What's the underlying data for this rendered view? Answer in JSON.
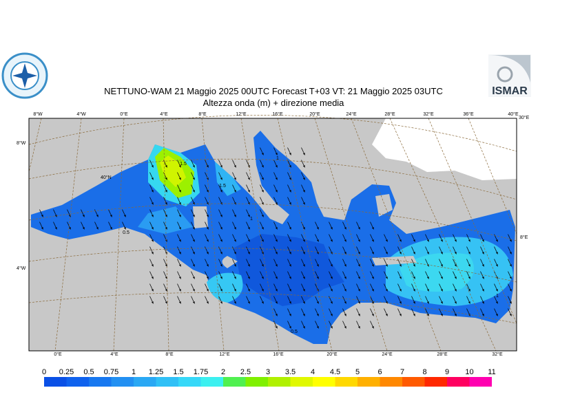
{
  "header": {
    "title": "NETTUNO-WAM  21   Maggio  2025 00UTC Forecast T+03 VT: 21   Maggio  2025 03UTC",
    "subtitle": "Altezza onda (m) + direzione media",
    "logo_right": "ISMAR"
  },
  "map": {
    "top_lon_labels": [
      "8°W",
      "4°W",
      "0°E",
      "4°E",
      "8°E",
      "12°E",
      "16°E",
      "20°E",
      "24°E",
      "28°E",
      "32°E",
      "36°E",
      "40°E"
    ],
    "bottom_lon_labels": [
      "0°E",
      "4°E",
      "8°E",
      "12°E",
      "16°E",
      "20°E",
      "24°E",
      "28°E",
      "32°E"
    ],
    "left_lat_labels": [
      "8°W",
      "40°N",
      "4°W"
    ],
    "right_lat_labels": [
      "30°E",
      "8°E"
    ],
    "contour_labels": [
      "1.5",
      "1.5",
      "1",
      "1",
      "0.5",
      "0.5",
      "1"
    ]
  },
  "colorbar": {
    "levels": [
      0,
      0.25,
      0.5,
      0.75,
      1,
      1.25,
      1.5,
      1.75,
      2,
      2.5,
      3,
      3.5,
      4,
      4.5,
      5,
      6,
      7,
      8,
      9,
      10,
      11
    ],
    "colors": [
      "#0a50e6",
      "#0f62ee",
      "#1878f0",
      "#2290f2",
      "#2aa8f4",
      "#30c0f6",
      "#36d8f8",
      "#3cf0f0",
      "#50f050",
      "#80f000",
      "#b0f000",
      "#e0f800",
      "#ffff00",
      "#ffd800",
      "#ffb000",
      "#ff8800",
      "#ff5a00",
      "#ff2800",
      "#ff0060",
      "#ff00b0"
    ]
  }
}
